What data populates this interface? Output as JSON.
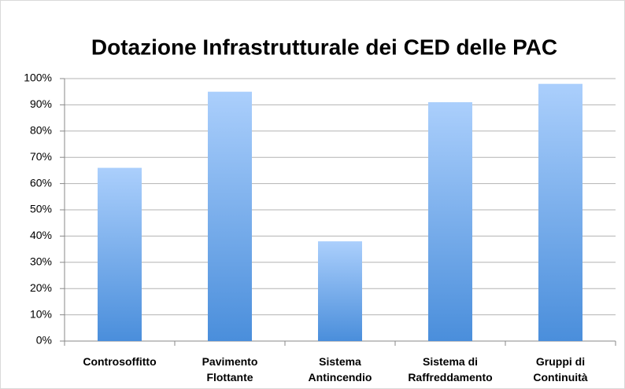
{
  "chart_data": {
    "type": "bar",
    "title": "Dotazione Infrastrutturale dei CED delle PAC",
    "categories": [
      [
        "Controsoffitto"
      ],
      [
        "Pavimento",
        "Flottante"
      ],
      [
        "Sistema",
        "Antincendio"
      ],
      [
        "Sistema di",
        "Raffreddamento"
      ],
      [
        "Gruppi di",
        "Continuità"
      ]
    ],
    "values": [
      66,
      95,
      38,
      91,
      98
    ],
    "color": "#6aa5ec",
    "ylim": [
      0,
      100
    ],
    "yticks": [
      {
        "value": 0,
        "label": "0%"
      },
      {
        "value": 10,
        "label": "10%"
      },
      {
        "value": 20,
        "label": "20%"
      },
      {
        "value": 30,
        "label": "30%"
      },
      {
        "value": 40,
        "label": "40%"
      },
      {
        "value": 50,
        "label": "50%"
      },
      {
        "value": 60,
        "label": "60%"
      },
      {
        "value": 70,
        "label": "70%"
      },
      {
        "value": 80,
        "label": "80%"
      },
      {
        "value": 90,
        "label": "90%"
      },
      {
        "value": 100,
        "label": "100%"
      }
    ],
    "grid": true
  }
}
